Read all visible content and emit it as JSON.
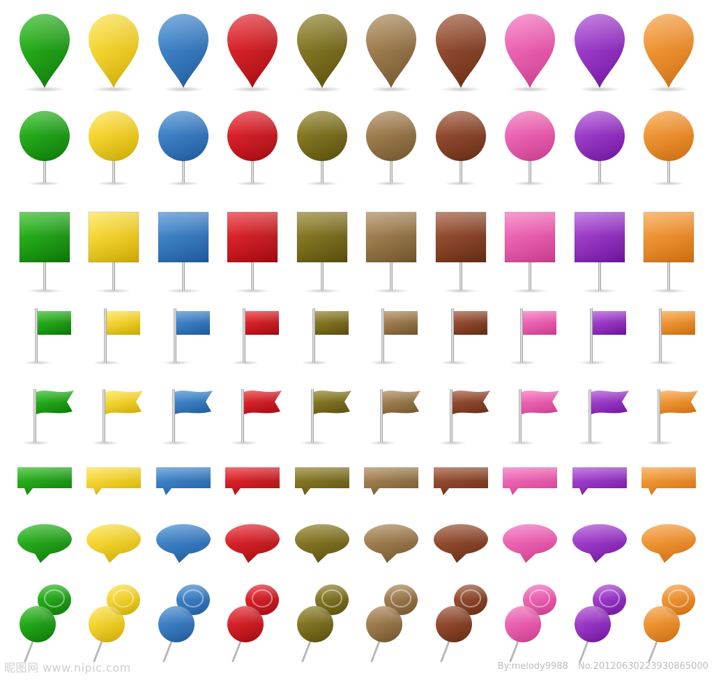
{
  "colors": [
    {
      "name": "green",
      "hex": "#1fb812",
      "dark": "#0c7d06"
    },
    {
      "name": "yellow",
      "hex": "#ffe03a",
      "dark": "#d9b400"
    },
    {
      "name": "blue",
      "hex": "#3a86d1",
      "dark": "#1f5ea3"
    },
    {
      "name": "red",
      "hex": "#e81a22",
      "dark": "#a90a10"
    },
    {
      "name": "olive",
      "hex": "#8a7a1c",
      "dark": "#5d520c"
    },
    {
      "name": "tan",
      "hex": "#a8824e",
      "dark": "#77592e"
    },
    {
      "name": "brown",
      "hex": "#9a4a2a",
      "dark": "#6a2c14"
    },
    {
      "name": "pink",
      "hex": "#f467b8",
      "dark": "#d63f96"
    },
    {
      "name": "purple",
      "hex": "#a73fd3",
      "dark": "#7413a6"
    },
    {
      "name": "orange",
      "hex": "#f79a34",
      "dark": "#d97410"
    }
  ],
  "rows": [
    {
      "name": "map-marker-row",
      "icon": "map-marker-icon"
    },
    {
      "name": "round-pin-row",
      "icon": "round-pin-icon"
    },
    {
      "name": "square-pin-row",
      "icon": "square-pin-icon"
    },
    {
      "name": "flag-row",
      "icon": "flag-icon"
    },
    {
      "name": "wavy-flag-row",
      "icon": "wavy-flag-icon"
    },
    {
      "name": "rectangle-callout-row",
      "icon": "rectangle-callout-icon"
    },
    {
      "name": "oval-speech-bubble-row",
      "icon": "oval-speech-bubble-icon"
    },
    {
      "name": "push-pin-row",
      "icon": "push-pin-icon"
    }
  ],
  "watermark": {
    "left": "昵图网 www.nipic.com",
    "author": "By:melody9988",
    "number": "No.20120630223930865000"
  }
}
